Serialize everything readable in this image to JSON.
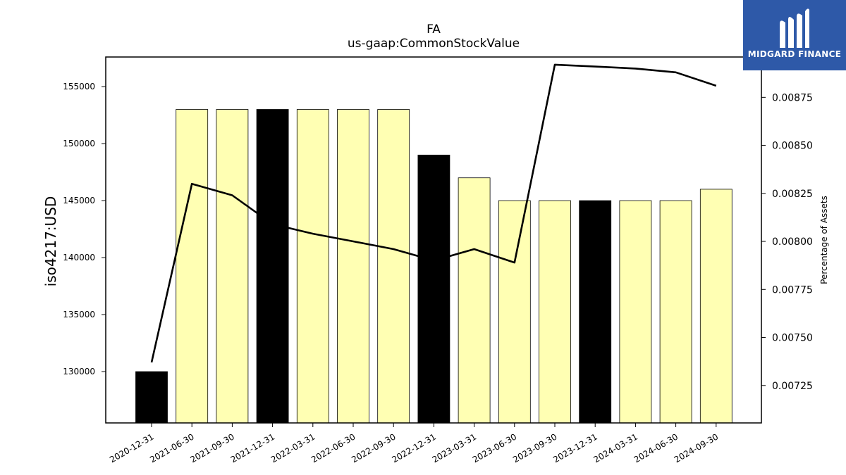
{
  "chart_data": {
    "type": "bar",
    "title": "FA",
    "subtitle": "us-gaap:CommonStockValue",
    "ylabel": "iso4217:USD",
    "y2label": "Percentage of Assets",
    "categories": [
      "2020-12-31",
      "2021-06-30",
      "2021-09-30",
      "2021-12-31",
      "2022-03-31",
      "2022-06-30",
      "2022-09-30",
      "2022-12-31",
      "2023-03-31",
      "2023-06-30",
      "2023-09-30",
      "2023-12-31",
      "2024-03-31",
      "2024-06-30",
      "2024-09-30"
    ],
    "series": [
      {
        "type": "bar",
        "values": [
          130000,
          153000,
          153000,
          153000,
          153000,
          153000,
          153000,
          149000,
          147000,
          145000,
          145000,
          145000,
          145000,
          145000,
          146000
        ],
        "colors": [
          "#000000",
          "#ffffb3",
          "#ffffb3",
          "#000000",
          "#ffffb3",
          "#ffffb3",
          "#ffffb3",
          "#000000",
          "#ffffb3",
          "#ffffb3",
          "#ffffb3",
          "#000000",
          "#ffffb3",
          "#ffffb3",
          "#ffffb3"
        ]
      },
      {
        "type": "line",
        "axis": "right",
        "values": [
          0.00737,
          0.0083,
          0.00824,
          0.00809,
          0.00804,
          0.008,
          0.00796,
          0.0079,
          0.00796,
          0.00789,
          0.00892,
          0.00891,
          0.0089,
          0.00888,
          0.00881
        ]
      }
    ],
    "ylim": [
      125500,
      157600
    ],
    "y2lim": [
      0.007055,
      0.00896
    ],
    "yticks": [
      "130000",
      "135000",
      "140000",
      "145000",
      "150000",
      "155000"
    ],
    "y2ticks": [
      "0.00725",
      "0.00750",
      "0.00775",
      "0.00800",
      "0.00825",
      "0.00850",
      "0.00875"
    ],
    "grid": false,
    "legend": "none"
  },
  "logo": {
    "text": "MIDGARD FINANCE",
    "bg": "#2e59a8"
  }
}
